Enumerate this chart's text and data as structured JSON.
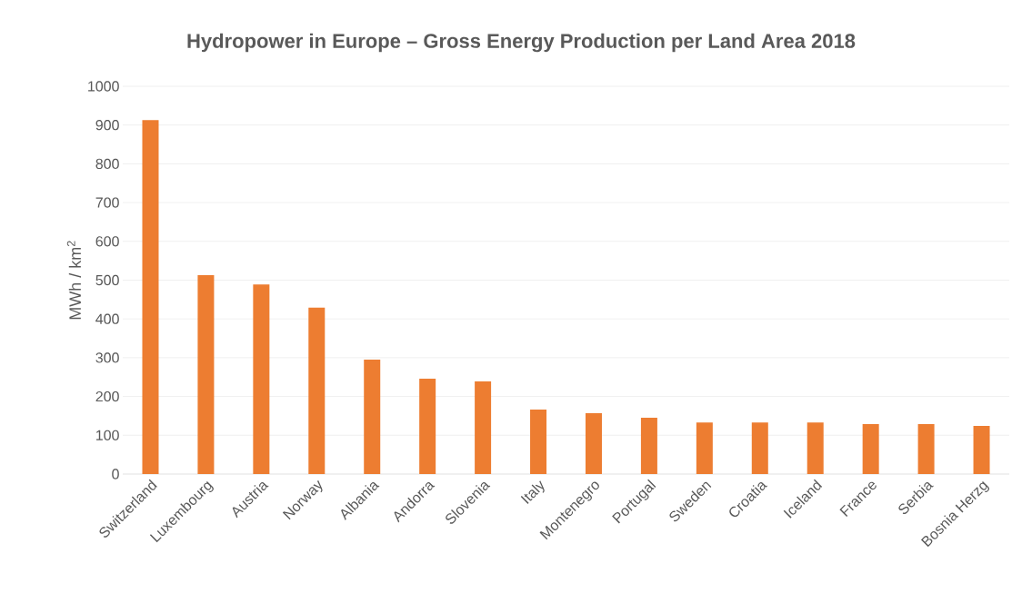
{
  "chart_data": {
    "type": "bar",
    "title": "Hydropower in Europe – Gross Energy Production per Land Area 2018",
    "ylabel": "MWh / km$^{2}$",
    "categories": [
      "Switzerland",
      "Luxembourg",
      "Austria",
      "Norway",
      "Albania",
      "Andorra",
      "Slovenia",
      "Italy",
      "Montenegro",
      "Portugal",
      "Sweden",
      "Croatia",
      "Iceland",
      "France",
      "Serbia",
      "Bosnia Herzg"
    ],
    "values": [
      913,
      513,
      489,
      429,
      295,
      246,
      239,
      166,
      157,
      145,
      133,
      133,
      133,
      129,
      129,
      124
    ],
    "color": "#ed7d31",
    "ylim": [
      0,
      1000
    ],
    "yticks": [
      0,
      100,
      200,
      300,
      400,
      500,
      600,
      700,
      800,
      900,
      1000
    ],
    "grid": "y"
  }
}
